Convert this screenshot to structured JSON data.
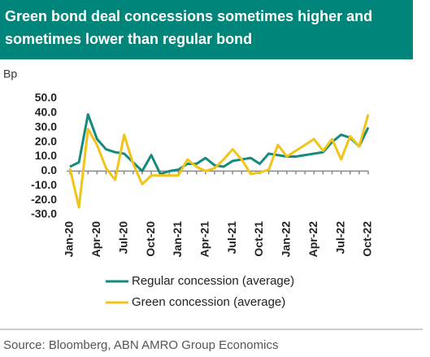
{
  "chart_data": {
    "type": "line",
    "title": "Green bond deal concessions sometimes higher and sometimes lower than regular bond",
    "y_label": "Bp",
    "source": "Source: Bloomberg,  ABN AMRO Group Economics",
    "categories": [
      "Jan-20",
      null,
      null,
      "Apr-20",
      null,
      null,
      "Jul-20",
      null,
      null,
      "Oct-20",
      null,
      null,
      "Jan-21",
      null,
      null,
      "Apr-21",
      null,
      null,
      "Jul-21",
      null,
      null,
      "Oct-21",
      null,
      null,
      "Jan-22",
      null,
      null,
      "Apr-22",
      null,
      null,
      "Jul-22",
      null,
      null,
      "Oct-22"
    ],
    "series": [
      {
        "name": "Regular concession (average)",
        "color": "#158b7d",
        "values": [
          3,
          6,
          39,
          22,
          15,
          13,
          12,
          6,
          0,
          11,
          -2,
          0,
          1,
          5,
          5,
          9,
          4,
          3,
          7,
          8,
          9,
          5,
          12,
          11,
          10,
          10,
          11,
          12,
          13,
          20,
          25,
          23,
          17,
          30
        ]
      },
      {
        "name": "Green concession (average)",
        "color": "#f0c419",
        "values": [
          2,
          -25,
          29,
          18,
          2,
          -6,
          25,
          5,
          -9,
          -3,
          -3,
          -3,
          -3,
          8,
          3,
          0,
          2,
          8,
          15,
          8,
          -2,
          -1,
          1,
          18,
          10,
          14,
          18,
          22,
          14,
          22,
          8,
          24,
          17,
          39
        ]
      }
    ],
    "ylim": [
      -30,
      50
    ],
    "yticks": [
      {
        "value": 50,
        "label": "50.0"
      },
      {
        "value": 40,
        "label": "40.0"
      },
      {
        "value": 30,
        "label": "30.0"
      },
      {
        "value": 20,
        "label": "20.0"
      },
      {
        "value": 10,
        "label": "10.0"
      },
      {
        "value": 0,
        "label": "0.0"
      },
      {
        "value": -10,
        "label": "-10.0"
      },
      {
        "value": -20,
        "label": "-20.0"
      },
      {
        "value": -30,
        "label": "-30.0"
      }
    ],
    "grid": false
  }
}
